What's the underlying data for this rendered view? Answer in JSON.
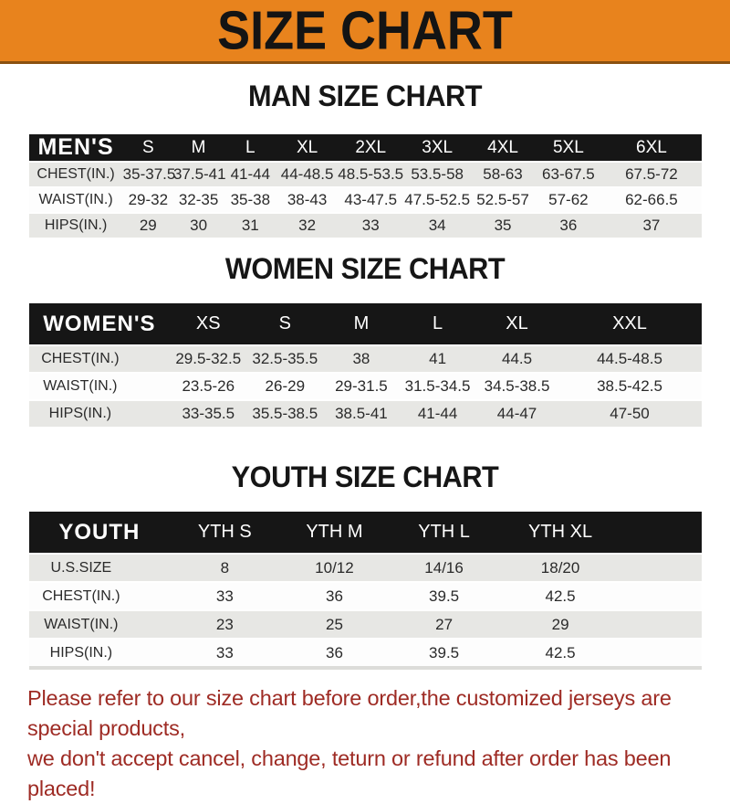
{
  "banner": {
    "title": "SIZE CHART",
    "background_color": "#E8831D",
    "text_color": "#141414"
  },
  "sections": [
    {
      "heading": "MAN SIZE CHART",
      "table": {
        "corner": "MEN'S",
        "columns": [
          "S",
          "M",
          "L",
          "XL",
          "2XL",
          "3XL",
          "4XL",
          "5XL",
          "6XL"
        ],
        "rows": [
          {
            "label": "CHEST(IN.)",
            "values": [
              "35-37.5",
              "37.5-41",
              "41-44",
              "44-48.5",
              "48.5-53.5",
              "53.5-58",
              "58-63",
              "63-67.5",
              "67.5-72"
            ]
          },
          {
            "label": "WAIST(IN.)",
            "values": [
              "29-32",
              "32-35",
              "35-38",
              "38-43",
              "43-47.5",
              "47.5-52.5",
              "52.5-57",
              "57-62",
              "62-66.5"
            ]
          },
          {
            "label": "HIPS(IN.)",
            "values": [
              "29",
              "30",
              "31",
              "32",
              "33",
              "34",
              "35",
              "36",
              "37"
            ]
          }
        ]
      }
    },
    {
      "heading": "WOMEN SIZE CHART",
      "table": {
        "corner": "WOMEN'S",
        "columns": [
          "XS",
          "S",
          "M",
          "L",
          "XL",
          "XXL"
        ],
        "rows": [
          {
            "label": "CHEST(IN.)",
            "values": [
              "29.5-32.5",
              "32.5-35.5",
              "38",
              "41",
              "44.5",
              "44.5-48.5"
            ]
          },
          {
            "label": "WAIST(IN.)",
            "values": [
              "23.5-26",
              "26-29",
              "29-31.5",
              "31.5-34.5",
              "34.5-38.5",
              "38.5-42.5"
            ]
          },
          {
            "label": "HIPS(IN.)",
            "values": [
              "33-35.5",
              "35.5-38.5",
              "38.5-41",
              "41-44",
              "44-47",
              "47-50"
            ]
          }
        ]
      }
    },
    {
      "heading": "YOUTH SIZE CHART",
      "table": {
        "corner": "YOUTH",
        "columns": [
          "YTH S",
          "YTH M",
          "YTH L",
          "YTH XL"
        ],
        "rows": [
          {
            "label": "U.S.SIZE",
            "values": [
              "8",
              "10/12",
              "14/16",
              "18/20"
            ]
          },
          {
            "label": "CHEST(IN.)",
            "values": [
              "33",
              "36",
              "39.5",
              "42.5"
            ]
          },
          {
            "label": "WAIST(IN.)",
            "values": [
              "23",
              "25",
              "27",
              "29"
            ]
          },
          {
            "label": "HIPS(IN.)",
            "values": [
              "33",
              "36",
              "39.5",
              "42.5"
            ]
          }
        ]
      }
    }
  ],
  "footer": {
    "line1": "Please refer to our size chart before order,the customized jerseys are special products,",
    "line2": "we don't accept cancel, change, teturn or refund after order has been placed!",
    "text_color": "#9E2B24"
  },
  "chart_data": [
    {
      "type": "table",
      "title": "MAN SIZE CHART",
      "columns": [
        "MEN'S",
        "S",
        "M",
        "L",
        "XL",
        "2XL",
        "3XL",
        "4XL",
        "5XL",
        "6XL"
      ],
      "rows": [
        [
          "CHEST(IN.)",
          "35-37.5",
          "37.5-41",
          "41-44",
          "44-48.5",
          "48.5-53.5",
          "53.5-58",
          "58-63",
          "63-67.5",
          "67.5-72"
        ],
        [
          "WAIST(IN.)",
          "29-32",
          "32-35",
          "35-38",
          "38-43",
          "43-47.5",
          "47.5-52.5",
          "52.5-57",
          "57-62",
          "62-66.5"
        ],
        [
          "HIPS(IN.)",
          "29",
          "30",
          "31",
          "32",
          "33",
          "34",
          "35",
          "36",
          "37"
        ]
      ]
    },
    {
      "type": "table",
      "title": "WOMEN SIZE CHART",
      "columns": [
        "WOMEN'S",
        "XS",
        "S",
        "M",
        "L",
        "XL",
        "XXL"
      ],
      "rows": [
        [
          "CHEST(IN.)",
          "29.5-32.5",
          "32.5-35.5",
          "38",
          "41",
          "44.5",
          "44.5-48.5"
        ],
        [
          "WAIST(IN.)",
          "23.5-26",
          "26-29",
          "29-31.5",
          "31.5-34.5",
          "34.5-38.5",
          "38.5-42.5"
        ],
        [
          "HIPS(IN.)",
          "33-35.5",
          "35.5-38.5",
          "38.5-41",
          "41-44",
          "44-47",
          "47-50"
        ]
      ]
    },
    {
      "type": "table",
      "title": "YOUTH SIZE CHART",
      "columns": [
        "YOUTH",
        "YTH S",
        "YTH M",
        "YTH L",
        "YTH XL"
      ],
      "rows": [
        [
          "U.S.SIZE",
          "8",
          "10/12",
          "14/16",
          "18/20"
        ],
        [
          "CHEST(IN.)",
          "33",
          "36",
          "39.5",
          "42.5"
        ],
        [
          "WAIST(IN.)",
          "23",
          "25",
          "27",
          "29"
        ],
        [
          "HIPS(IN.)",
          "33",
          "36",
          "39.5",
          "42.5"
        ]
      ]
    }
  ]
}
